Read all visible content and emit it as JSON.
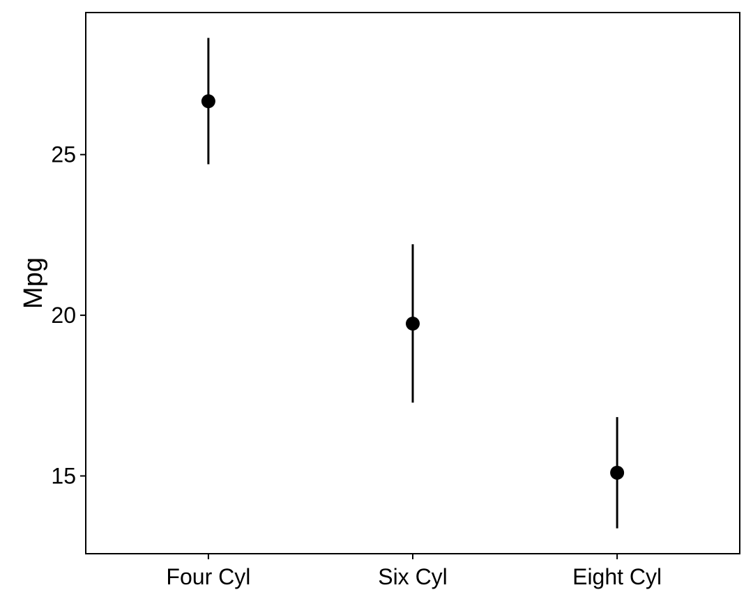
{
  "chart_data": {
    "type": "scatter",
    "title": "",
    "xlabel": "",
    "ylabel": "Mpg",
    "categories": [
      "Four Cyl",
      "Six Cyl",
      "Eight Cyl"
    ],
    "series": [
      {
        "values": [
          26.66,
          19.74,
          15.1
        ],
        "error_low": [
          24.7,
          17.28,
          13.37
        ],
        "error_high": [
          28.63,
          22.21,
          16.83
        ]
      }
    ],
    "yticks": [
      15,
      20,
      25
    ],
    "ylim": [
      12.58,
      29.42
    ],
    "grid": false,
    "legend": "none",
    "colors": {
      "point": "#000000",
      "errorbar": "#000000",
      "axis": "#000000",
      "background": "#ffffff"
    }
  }
}
